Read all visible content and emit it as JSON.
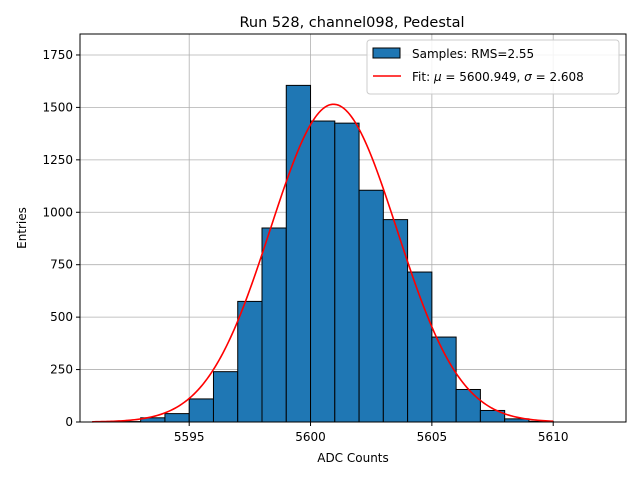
{
  "chart_data": {
    "type": "bar",
    "title": "Run 528, channel098, Pedestal",
    "xlabel": "ADC Counts",
    "ylabel": "Entries",
    "xlim": [
      5590.5,
      5613.0
    ],
    "ylim": [
      0,
      1850
    ],
    "grid": true,
    "legend_position": "top-right",
    "x_ticks": [
      5595,
      5600,
      5605,
      5610
    ],
    "y_ticks": [
      0,
      250,
      500,
      750,
      1000,
      1250,
      1500,
      1750
    ],
    "histogram": {
      "name": "Samples: RMS=2.55",
      "color": "#1f77b4",
      "edge_color": "#000000",
      "bins": [
        {
          "start": 5592,
          "end": 5593,
          "count": 2
        },
        {
          "start": 5593,
          "end": 5594,
          "count": 20
        },
        {
          "start": 5594,
          "end": 5595,
          "count": 40
        },
        {
          "start": 5595,
          "end": 5596,
          "count": 110
        },
        {
          "start": 5596,
          "end": 5597,
          "count": 240
        },
        {
          "start": 5597,
          "end": 5598,
          "count": 575
        },
        {
          "start": 5598,
          "end": 5599,
          "count": 925
        },
        {
          "start": 5599,
          "end": 5600,
          "count": 1605
        },
        {
          "start": 5600,
          "end": 5601,
          "count": 1435
        },
        {
          "start": 5601,
          "end": 5602,
          "count": 1425
        },
        {
          "start": 5602,
          "end": 5603,
          "count": 1105
        },
        {
          "start": 5603,
          "end": 5604,
          "count": 965
        },
        {
          "start": 5604,
          "end": 5605,
          "count": 715
        },
        {
          "start": 5605,
          "end": 5606,
          "count": 405
        },
        {
          "start": 5606,
          "end": 5607,
          "count": 155
        },
        {
          "start": 5607,
          "end": 5608,
          "count": 55
        },
        {
          "start": 5608,
          "end": 5609,
          "count": 15
        },
        {
          "start": 5609,
          "end": 5610,
          "count": 3
        }
      ]
    },
    "fit": {
      "name": "Fit: μ = 5600.949, σ = 2.608",
      "mu": 5600.949,
      "sigma": 2.608,
      "amplitude": 1515,
      "x_range": [
        5591,
        5610
      ],
      "color": "#ff0000"
    },
    "legend": {
      "hist_label_prefix": "Samples: RMS=2.55",
      "fit_text": "Fit: ",
      "mu_symbol": "μ",
      "mu_text": " = 5600.949, ",
      "sigma_symbol": "σ",
      "sigma_text": " = 2.608"
    }
  }
}
